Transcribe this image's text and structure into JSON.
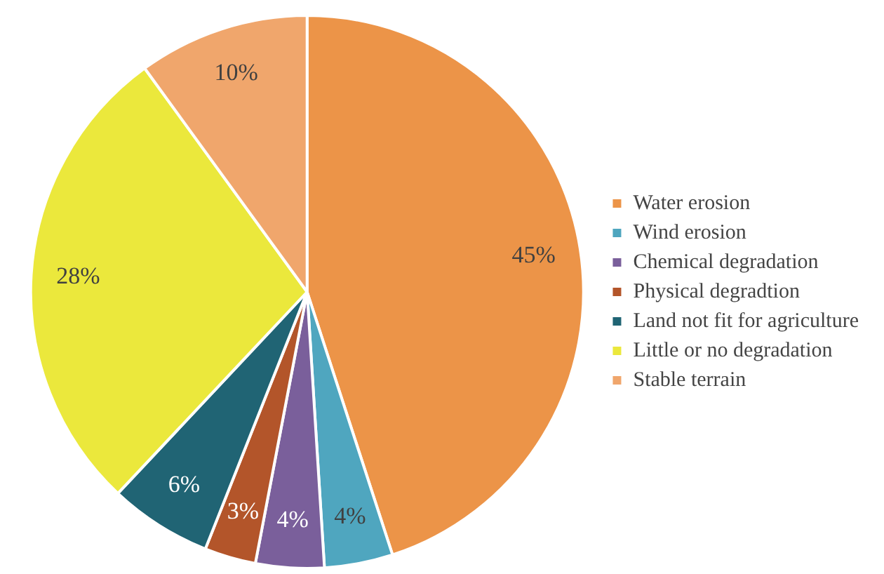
{
  "chart_data": {
    "type": "pie",
    "categories": [
      "Water erosion",
      "Wind erosion",
      "Chemical degradation",
      "Physical degradtion",
      "Land not fit for agriculture",
      "Little or no degradation",
      "Stable terrain"
    ],
    "values": [
      45,
      4,
      4,
      3,
      6,
      28,
      10
    ],
    "value_labels": [
      "45%",
      "4%",
      "4%",
      "3%",
      "6%",
      "28%",
      "10%"
    ],
    "colors": [
      "#ec9448",
      "#4fa6bf",
      "#7a5f9b",
      "#b3552a",
      "#206474",
      "#ebe83c",
      "#f0a66c"
    ],
    "legend": "right"
  }
}
